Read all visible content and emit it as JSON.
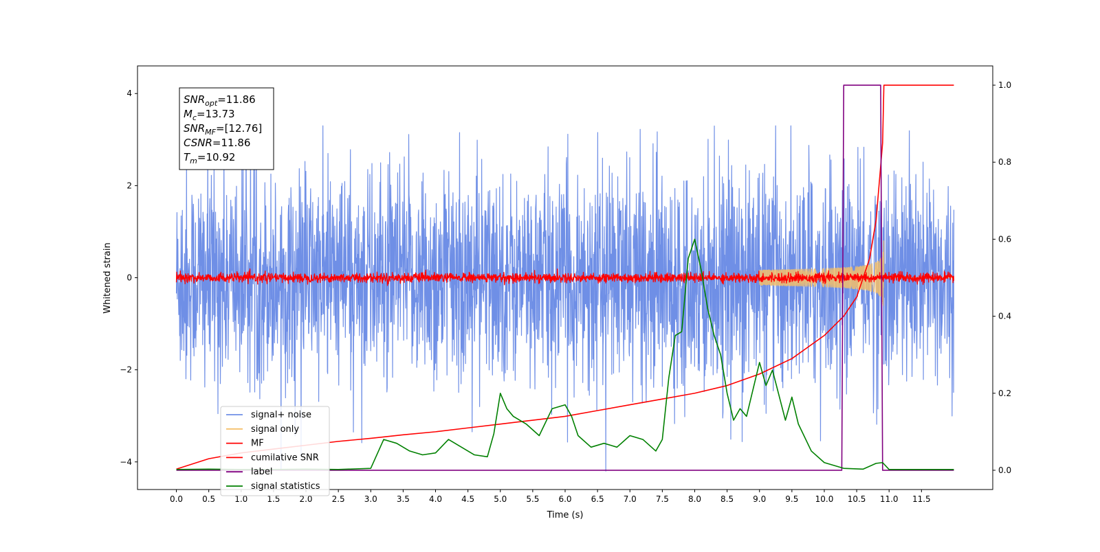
{
  "chart_data": {
    "type": "line",
    "title": "",
    "xlabel": "Time (s)",
    "ylabel": "Whitened strain",
    "y2label": "",
    "xlim": [
      -0.6,
      12.6
    ],
    "ylim": [
      -4.6,
      4.6
    ],
    "y2lim": [
      -0.05,
      1.05
    ],
    "grid": false,
    "legend_placement": "lower-left",
    "xticks": [
      "0.0",
      "0.5",
      "1.0",
      "1.5",
      "2.0",
      "2.5",
      "3.0",
      "3.5",
      "4.0",
      "4.5",
      "5.0",
      "5.5",
      "6.0",
      "6.5",
      "7.0",
      "7.5",
      "8.0",
      "8.5",
      "9.0",
      "9.5",
      "10.0",
      "10.5",
      "11.0",
      "11.5"
    ],
    "yticks": [
      "4",
      "2",
      "0",
      "−2",
      "−4"
    ],
    "y2ticks": [
      "1.0",
      "0.8",
      "0.6",
      "0.4",
      "0.2",
      "0.0"
    ],
    "annotation": {
      "lines": [
        {
          "label": "SNR",
          "sub": "opt",
          "value": "=11.86"
        },
        {
          "label": "M",
          "sub": "c",
          "value": "=13.73"
        },
        {
          "label": "SNR",
          "sub": "MF",
          "value": "=[12.76]"
        },
        {
          "label": "CSNR",
          "sub": "",
          "value": "=11.86"
        },
        {
          "label": "T",
          "sub": "m",
          "value": "=10.92"
        }
      ]
    },
    "series": [
      {
        "name": "signal+ noise",
        "color": "#6f8fe6",
        "axis": "left",
        "kind": "noise",
        "band": [
          -2.2,
          2.2
        ],
        "t_range": [
          0,
          12.0
        ]
      },
      {
        "name": "signal only",
        "color": "#f5c06a",
        "axis": "left",
        "kind": "chirp",
        "t_range": [
          9.0,
          12.0
        ],
        "peak_amplitude": 0.9,
        "merger_time": 10.92
      },
      {
        "name": "MF",
        "color": "#ff0000",
        "axis": "left",
        "kind": "noise",
        "band": [
          -0.1,
          0.1
        ],
        "t_range": [
          0,
          12.0
        ]
      },
      {
        "name": "cumilative SNR",
        "color": "#ff0000",
        "axis": "right",
        "x": [
          0,
          0.5,
          1,
          1.5,
          2,
          2.5,
          3,
          3.5,
          4,
          4.5,
          5,
          5.5,
          6,
          6.5,
          7,
          7.5,
          8,
          8.5,
          9,
          9.5,
          10,
          10.3,
          10.5,
          10.7,
          10.8,
          10.9,
          10.92,
          12.0
        ],
        "y": [
          0.003,
          0.03,
          0.045,
          0.055,
          0.065,
          0.075,
          0.083,
          0.092,
          0.1,
          0.11,
          0.12,
          0.13,
          0.14,
          0.155,
          0.17,
          0.185,
          0.2,
          0.22,
          0.25,
          0.29,
          0.35,
          0.4,
          0.45,
          0.55,
          0.65,
          0.85,
          1.0,
          1.0
        ]
      },
      {
        "name": "label",
        "color": "#800080",
        "axis": "right",
        "x": [
          0,
          10.27,
          10.3,
          10.87,
          10.9,
          12.0
        ],
        "y": [
          0,
          0,
          1,
          1,
          0,
          0
        ]
      },
      {
        "name": "signal statistics",
        "color": "#008000",
        "axis": "right",
        "x": [
          0,
          0.5,
          1,
          1.5,
          2,
          2.5,
          3,
          3.2,
          3.4,
          3.6,
          3.8,
          4,
          4.2,
          4.4,
          4.6,
          4.8,
          4.9,
          5.0,
          5.1,
          5.2,
          5.4,
          5.6,
          5.8,
          6.0,
          6.1,
          6.2,
          6.4,
          6.6,
          6.8,
          7.0,
          7.2,
          7.4,
          7.5,
          7.6,
          7.7,
          7.8,
          7.9,
          8.0,
          8.1,
          8.2,
          8.3,
          8.4,
          8.5,
          8.6,
          8.7,
          8.8,
          9.0,
          9.1,
          9.2,
          9.4,
          9.5,
          9.6,
          9.8,
          10.0,
          10.3,
          10.6,
          10.8,
          10.9,
          11.0,
          11.5,
          12.0
        ],
        "y": [
          0.002,
          0.003,
          0.002,
          0.002,
          0.003,
          0.002,
          0.005,
          0.08,
          0.07,
          0.05,
          0.04,
          0.045,
          0.08,
          0.06,
          0.04,
          0.035,
          0.095,
          0.2,
          0.16,
          0.14,
          0.12,
          0.09,
          0.16,
          0.17,
          0.14,
          0.09,
          0.06,
          0.07,
          0.06,
          0.09,
          0.08,
          0.05,
          0.08,
          0.24,
          0.35,
          0.36,
          0.55,
          0.6,
          0.52,
          0.42,
          0.35,
          0.3,
          0.2,
          0.13,
          0.16,
          0.14,
          0.28,
          0.22,
          0.26,
          0.13,
          0.19,
          0.12,
          0.05,
          0.02,
          0.005,
          0.003,
          0.018,
          0.02,
          0.002,
          0.002,
          0.002
        ]
      }
    ]
  }
}
